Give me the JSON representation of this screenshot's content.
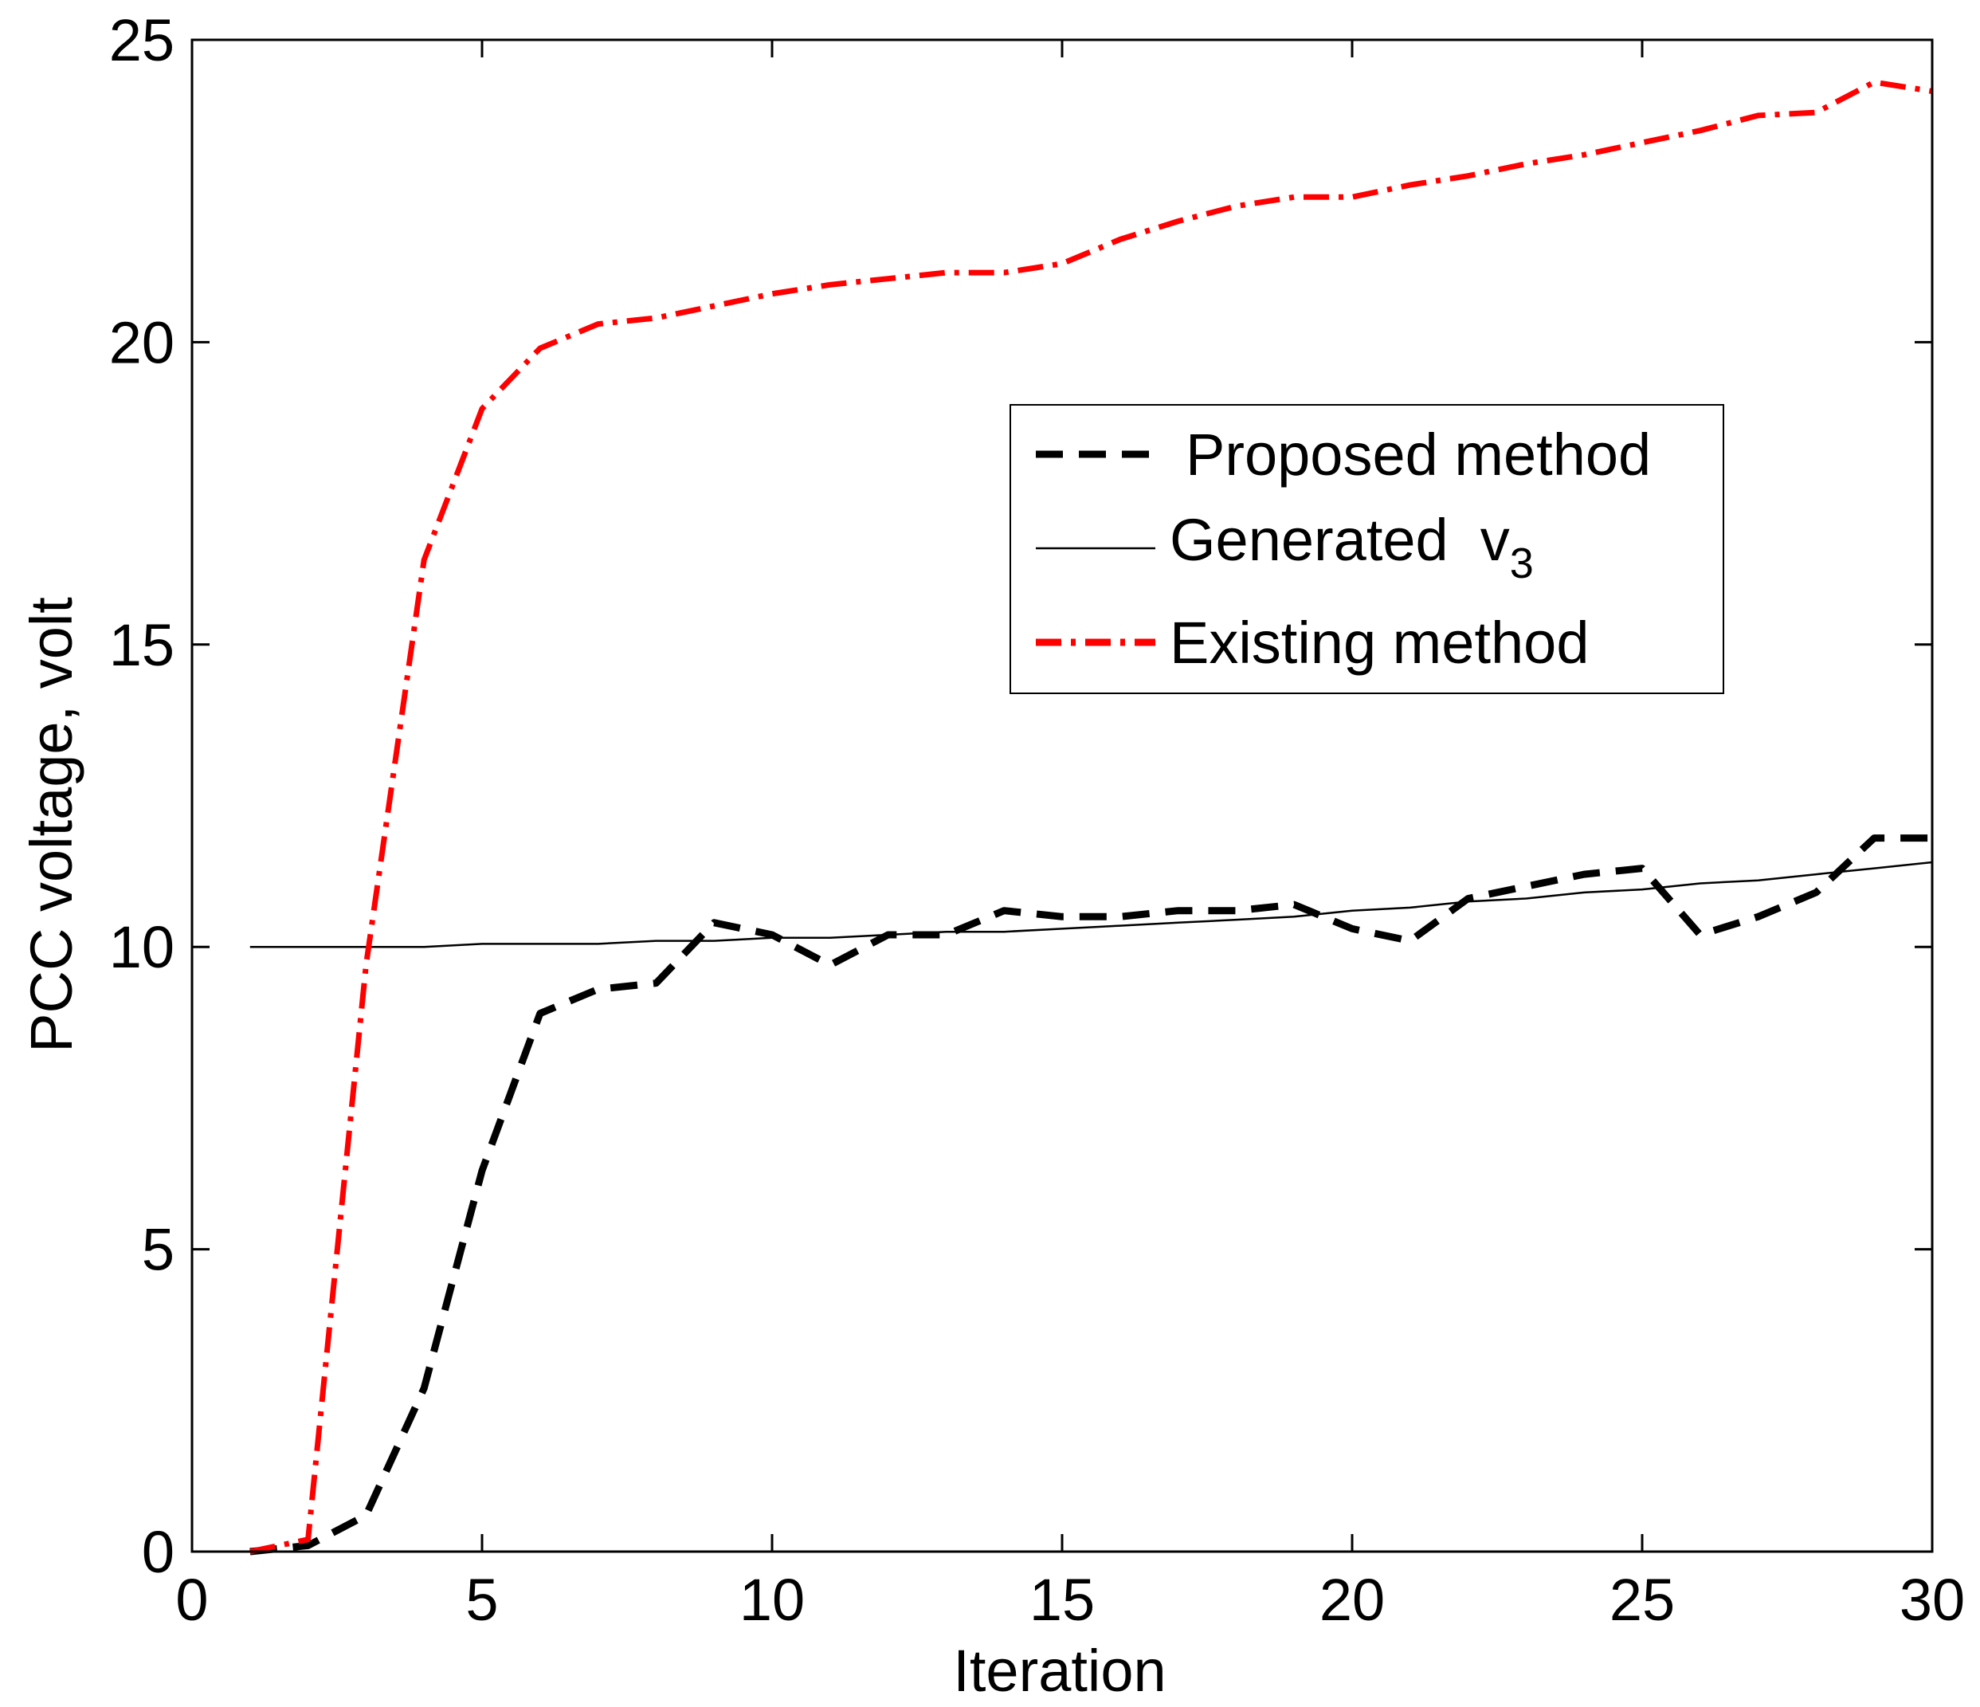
{
  "chart_data": {
    "type": "line",
    "title": "",
    "xlabel": "Iteration",
    "ylabel": "PCC voltage,  volt",
    "xlim": [
      0,
      30
    ],
    "ylim": [
      0,
      25
    ],
    "xticks": [
      0,
      5,
      10,
      15,
      20,
      25,
      30
    ],
    "yticks": [
      0,
      5,
      10,
      15,
      20,
      25
    ],
    "legend_position": "upper-right",
    "x": [
      1,
      2,
      3,
      4,
      5,
      6,
      7,
      8,
      9,
      10,
      11,
      12,
      13,
      14,
      15,
      16,
      17,
      18,
      19,
      20,
      21,
      22,
      23,
      24,
      25,
      26,
      27,
      28,
      29,
      30
    ],
    "series": [
      {
        "name": "Proposed method",
        "style": "dashed",
        "color": "#000000",
        "values": [
          0.0,
          0.1,
          0.6,
          2.7,
          6.3,
          8.9,
          9.3,
          9.4,
          10.4,
          10.2,
          9.7,
          10.2,
          10.2,
          10.6,
          10.5,
          10.5,
          10.6,
          10.6,
          10.7,
          10.3,
          10.1,
          10.8,
          11.0,
          11.2,
          11.3,
          10.2,
          10.5,
          10.9,
          11.8,
          11.8
        ]
      },
      {
        "name": "Generated",
        "name_sub": "v",
        "name_subscript": "3",
        "style": "solid",
        "color": "#000000",
        "values": [
          10.0,
          10.0,
          10.0,
          10.0,
          10.05,
          10.05,
          10.05,
          10.1,
          10.1,
          10.15,
          10.15,
          10.2,
          10.25,
          10.25,
          10.3,
          10.35,
          10.4,
          10.45,
          10.5,
          10.6,
          10.65,
          10.75,
          10.8,
          10.9,
          10.95,
          11.05,
          11.1,
          11.2,
          11.3,
          11.4
        ]
      },
      {
        "name": "Existing method",
        "style": "dashdot",
        "color": "#ff0000",
        "values": [
          0.0,
          0.2,
          9.7,
          16.4,
          18.9,
          19.9,
          20.3,
          20.4,
          20.6,
          20.8,
          20.95,
          21.05,
          21.15,
          21.15,
          21.3,
          21.7,
          22.0,
          22.25,
          22.4,
          22.4,
          22.6,
          22.75,
          22.95,
          23.1,
          23.3,
          23.5,
          23.75,
          23.8,
          24.3,
          24.15
        ]
      }
    ]
  }
}
